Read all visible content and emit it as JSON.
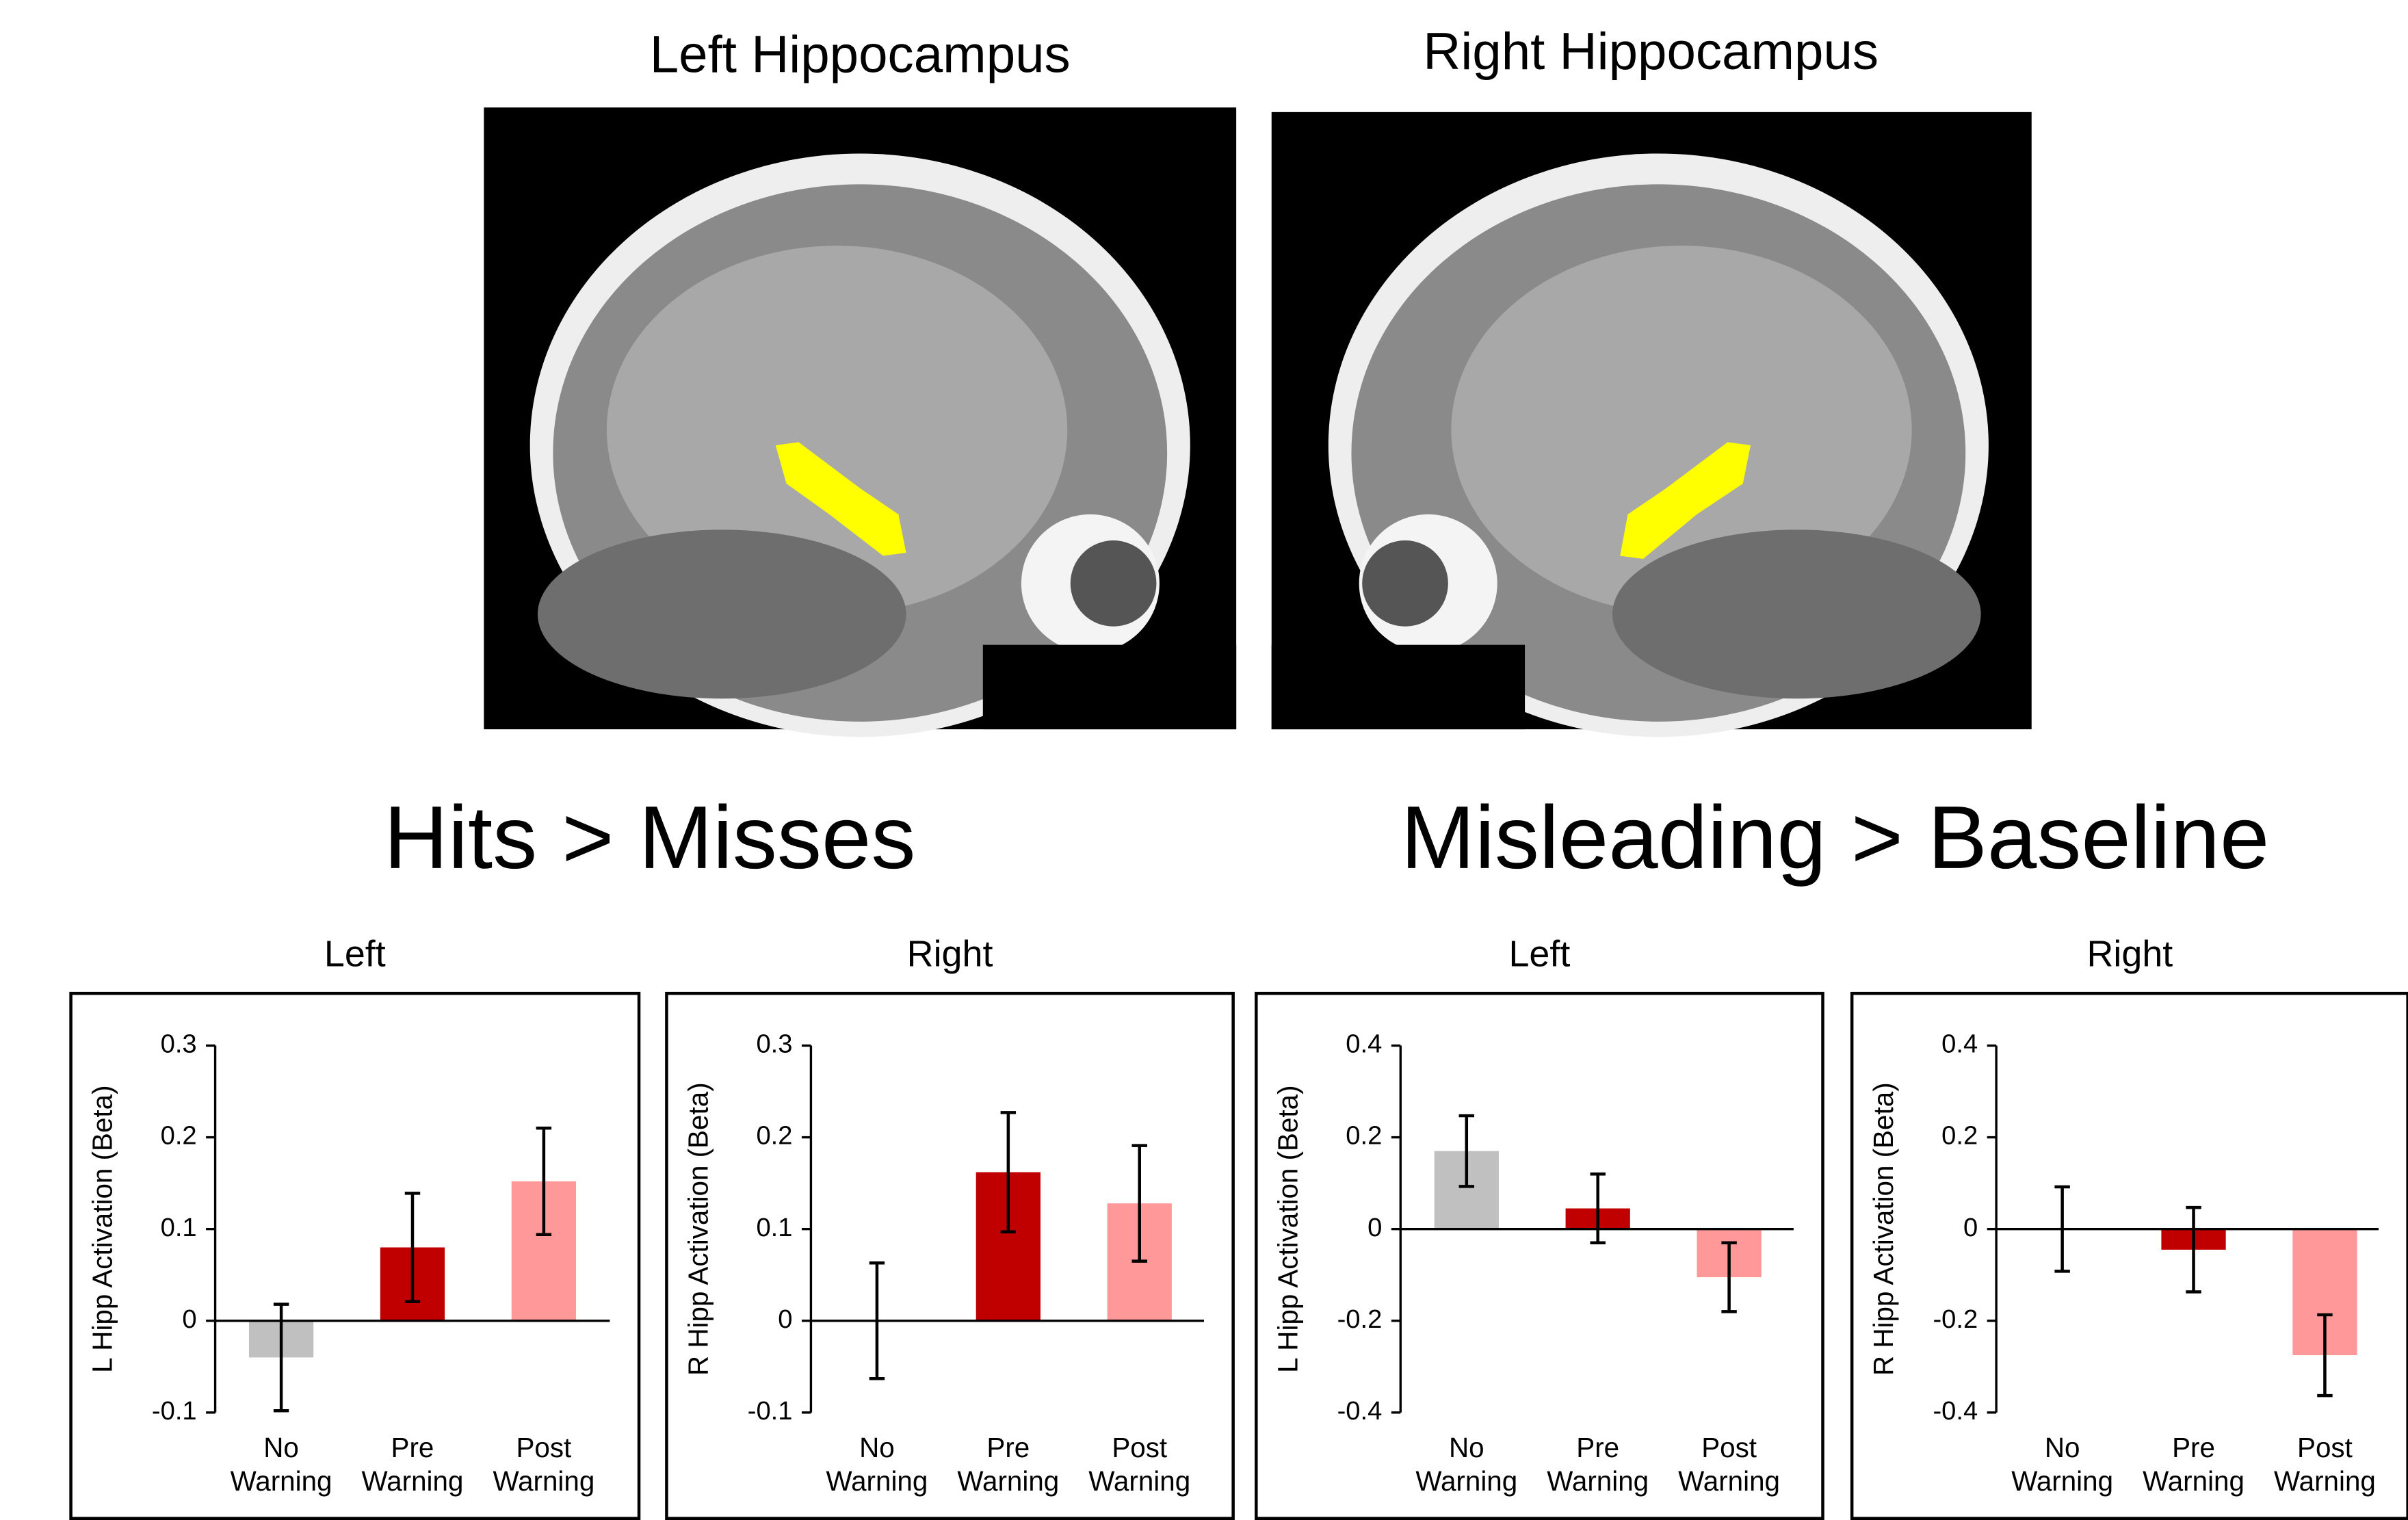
{
  "images": [
    {
      "title": "Left Hippocampus"
    },
    {
      "title": "Right Hippocampus"
    }
  ],
  "panel_groups": [
    {
      "title": "Hits > Misses"
    },
    {
      "title": "Misleading > Baseline"
    }
  ],
  "chart_data": [
    {
      "type": "bar",
      "title": "Left",
      "ylabel": "L Hipp Activation (Beta)",
      "categories": [
        "No Warning",
        "Pre Warning",
        "Post Warning"
      ],
      "values": [
        -0.04,
        0.08,
        0.152
      ],
      "errors": [
        0.058,
        0.059,
        0.058
      ],
      "colors": [
        "#c0c0c0",
        "#c00000",
        "#ff9999"
      ],
      "ylim": [
        -0.1,
        0.3
      ],
      "yticks": [
        -0.1,
        0,
        0.1,
        0.2,
        0.3
      ]
    },
    {
      "type": "bar",
      "title": "Right",
      "ylabel": "R Hipp Activation (Beta)",
      "categories": [
        "No Warning",
        "Pre Warning",
        "Post Warning"
      ],
      "values": [
        0,
        0.162,
        0.128
      ],
      "errors": [
        0.063,
        0.065,
        0.063
      ],
      "colors": [
        "#c0c0c0",
        "#c00000",
        "#ff9999"
      ],
      "ylim": [
        -0.1,
        0.3
      ],
      "yticks": [
        -0.1,
        0,
        0.1,
        0.2,
        0.3
      ]
    },
    {
      "type": "bar",
      "title": "Left",
      "ylabel": "L Hipp Activation (Beta)",
      "categories": [
        "No Warning",
        "Pre Warning",
        "Post Warning"
      ],
      "values": [
        0.17,
        0.045,
        -0.105
      ],
      "errors": [
        0.077,
        0.075,
        0.075
      ],
      "colors": [
        "#c0c0c0",
        "#c00000",
        "#ff9999"
      ],
      "ylim": [
        -0.4,
        0.4
      ],
      "yticks": [
        -0.4,
        -0.2,
        0,
        0.2,
        0.4
      ]
    },
    {
      "type": "bar",
      "title": "Right",
      "ylabel": "R Hipp Activation (Beta)",
      "categories": [
        "No Warning",
        "Pre Warning",
        "Post Warning"
      ],
      "values": [
        0,
        -0.045,
        -0.275
      ],
      "errors": [
        0.092,
        0.092,
        0.088
      ],
      "colors": [
        "#c0c0c0",
        "#c00000",
        "#ff9999"
      ],
      "ylim": [
        -0.4,
        0.4
      ],
      "yticks": [
        -0.4,
        -0.2,
        0,
        0.2,
        0.4
      ]
    }
  ]
}
